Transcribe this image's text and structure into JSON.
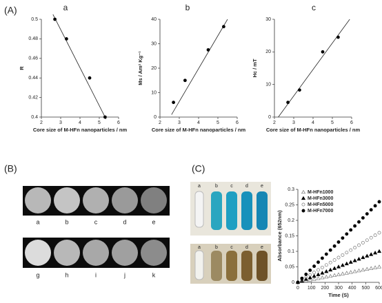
{
  "panel_labels": [
    "(A)",
    "(B)",
    "(C)"
  ],
  "mri_labels": {
    "top": [
      "a",
      "b",
      "c",
      "d",
      "e"
    ],
    "bottom": [
      "g",
      "h",
      "i",
      "j",
      "k"
    ]
  },
  "tube_labels": {
    "top": [
      "a",
      "b",
      "c",
      "d",
      "e"
    ],
    "bottom": [
      "a",
      "b",
      "c",
      "d",
      "e"
    ]
  },
  "chart_data": [
    {
      "type": "scatter",
      "title": "a",
      "x_label": "Core size of M-HFn nanoparticles / nm",
      "y_label": "R",
      "x": [
        2.7,
        3.3,
        4.5,
        5.3
      ],
      "values": [
        0.5,
        0.48,
        0.44,
        0.4
      ],
      "color": "#000000",
      "trendline": {
        "x": [
          2.6,
          5.35
        ],
        "y": [
          0.505,
          0.398
        ]
      },
      "xlim": [
        2,
        6
      ],
      "xticks": [
        2,
        3,
        4,
        5,
        6
      ],
      "ylim": [
        0.4,
        0.5
      ],
      "yticks": [
        0.4,
        0.42,
        0.44,
        0.46,
        0.48,
        0.5
      ]
    },
    {
      "type": "scatter",
      "title": "b",
      "x_label": "Core size of M-HFn nanoparticles / nm",
      "y_label": "Ms / Am² Kg⁻¹",
      "x": [
        2.7,
        3.3,
        4.5,
        5.3
      ],
      "values": [
        6,
        15,
        27.5,
        37
      ],
      "color": "#000000",
      "trendline": {
        "x": [
          2.6,
          5.5
        ],
        "y": [
          1,
          40
        ]
      },
      "xlim": [
        2,
        6
      ],
      "xticks": [
        2,
        3,
        4,
        5,
        6
      ],
      "ylim": [
        0,
        40
      ],
      "yticks": [
        0,
        10,
        20,
        30,
        40
      ]
    },
    {
      "type": "scatter",
      "title": "c",
      "x_label": "Core size of M-HFn nanoparticles / nm",
      "y_label": "Hc / mT",
      "x": [
        2.7,
        3.3,
        4.5,
        5.3
      ],
      "values": [
        4.5,
        8.3,
        20,
        24.5
      ],
      "color": "#000000",
      "trendline": {
        "x": [
          2.2,
          5.9
        ],
        "y": [
          0,
          30
        ]
      },
      "xlim": [
        2,
        6
      ],
      "xticks": [
        2,
        3,
        4,
        5,
        6
      ],
      "ylim": [
        0,
        30
      ],
      "yticks": [
        0,
        10,
        20,
        30
      ]
    },
    {
      "type": "line",
      "x_label": "Time (S)",
      "y_label": "Absorbance (652nm)",
      "legend": "upper left",
      "x": [
        0,
        30,
        60,
        90,
        120,
        150,
        180,
        210,
        240,
        270,
        300,
        330,
        360,
        390,
        420,
        450,
        480,
        510,
        540,
        570,
        600
      ],
      "series": [
        {
          "name": "M-HFn1000",
          "color": "#777777",
          "marker": "triangle",
          "filled": false,
          "values": [
            0,
            0.0025,
            0.005,
            0.0075,
            0.01,
            0.0125,
            0.015,
            0.0175,
            0.02,
            0.0225,
            0.025,
            0.0275,
            0.03,
            0.0325,
            0.035,
            0.0375,
            0.04,
            0.0425,
            0.045,
            0.0475,
            0.05
          ]
        },
        {
          "name": "M-HFn3000",
          "color": "#000000",
          "marker": "triangle",
          "filled": true,
          "values": [
            0,
            0.005,
            0.01,
            0.015,
            0.02,
            0.025,
            0.03,
            0.035,
            0.04,
            0.045,
            0.05,
            0.055,
            0.06,
            0.065,
            0.07,
            0.075,
            0.08,
            0.085,
            0.09,
            0.095,
            0.1
          ]
        },
        {
          "name": "M-HFn5000",
          "color": "#777777",
          "marker": "circle",
          "filled": false,
          "values": [
            0,
            0.008,
            0.016,
            0.024,
            0.032,
            0.04,
            0.048,
            0.056,
            0.064,
            0.072,
            0.08,
            0.088,
            0.096,
            0.104,
            0.112,
            0.12,
            0.128,
            0.136,
            0.144,
            0.152,
            0.16
          ]
        },
        {
          "name": "M-HFn7000",
          "color": "#000000",
          "marker": "circle",
          "filled": true,
          "values": [
            0,
            0.013,
            0.026,
            0.039,
            0.052,
            0.065,
            0.078,
            0.091,
            0.104,
            0.117,
            0.13,
            0.143,
            0.156,
            0.169,
            0.182,
            0.195,
            0.208,
            0.221,
            0.234,
            0.247,
            0.26
          ]
        }
      ],
      "xlim": [
        0,
        600
      ],
      "xticks": [
        0,
        100,
        200,
        300,
        400,
        500,
        600
      ],
      "ylim": [
        0,
        0.3
      ],
      "yticks": [
        0,
        0.05,
        0.1,
        0.15,
        0.2,
        0.25,
        0.3
      ]
    }
  ]
}
